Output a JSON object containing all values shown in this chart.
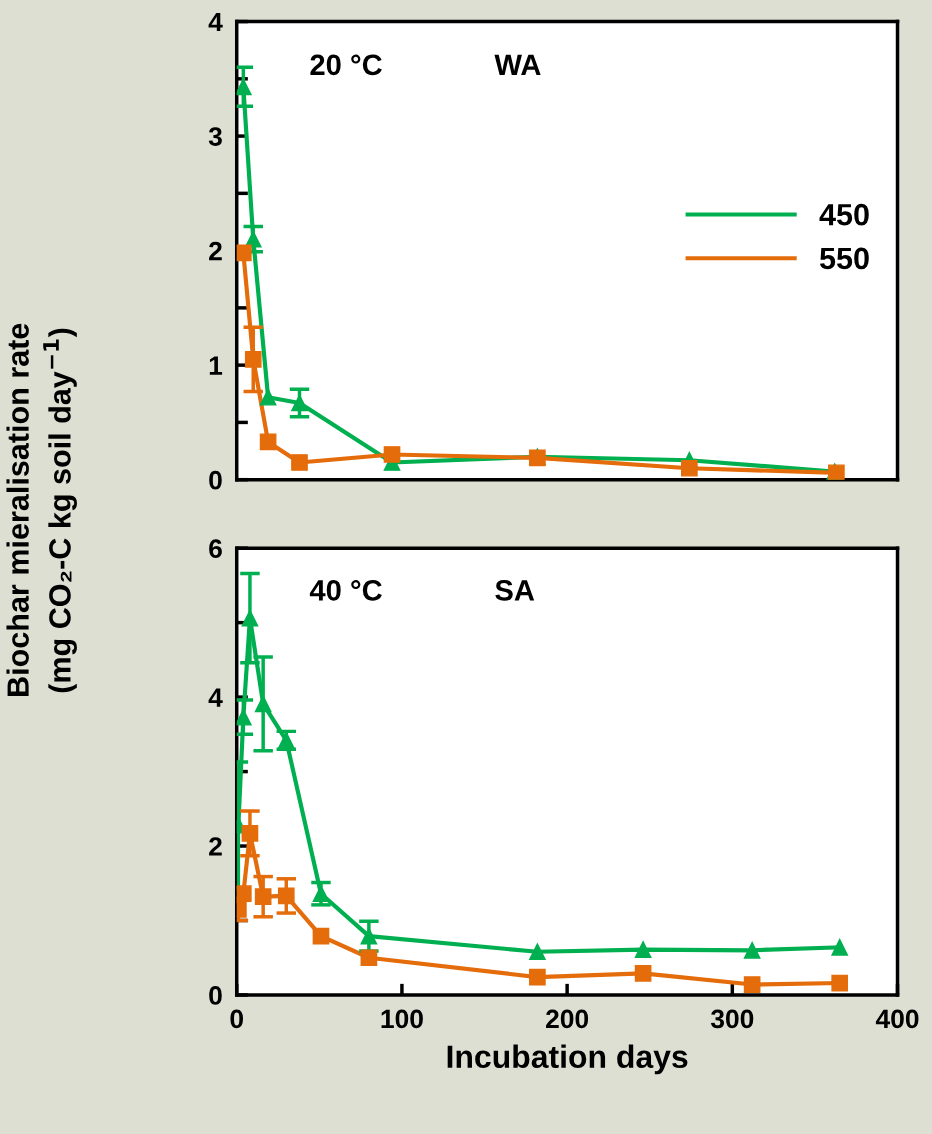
{
  "chart_data": [
    {
      "type": "line",
      "annotations": [
        "20 °C",
        "WA"
      ],
      "ylabel": "Biochar mieralisation rate\n(mg CO₂-C kg soil day$^{−1}$)",
      "xlim": [
        0,
        400
      ],
      "ylim": [
        0,
        4
      ],
      "yticks": [
        0,
        {
          "value": 0.5,
          "label": null
        },
        1,
        {
          "value": 1.5,
          "label": null
        },
        2,
        {
          "value": 2.5,
          "label": null
        },
        3,
        {
          "value": 3.5,
          "label": null
        },
        4
      ],
      "tick_labels": "y",
      "legend": "center right",
      "grid": false,
      "series": [
        {
          "name": "450",
          "color": "#00b050",
          "marker": "triangle",
          "x": [
            4,
            10,
            19,
            38,
            94,
            182,
            274,
            362
          ],
          "values": [
            3.43,
            2.1,
            0.72,
            0.67,
            0.15,
            0.2,
            0.17,
            0.07
          ],
          "errors": [
            0.17,
            0.11,
            null,
            0.12,
            null,
            null,
            null,
            null
          ]
        },
        {
          "name": "550",
          "color": "#e46c0a",
          "marker": "square",
          "x": [
            4,
            10,
            19,
            38,
            94,
            182,
            274,
            363
          ],
          "values": [
            1.98,
            1.05,
            0.33,
            0.15,
            0.22,
            0.19,
            0.1,
            0.06
          ],
          "errors": [
            null,
            0.28,
            null,
            null,
            null,
            null,
            null,
            null
          ]
        }
      ]
    },
    {
      "type": "line",
      "annotations": [
        "40 °C",
        "SA"
      ],
      "xlabel": "Incubation days",
      "xlim": [
        0,
        400
      ],
      "xticks": [
        0,
        100,
        200,
        300,
        400
      ],
      "ylim": [
        0,
        6
      ],
      "yticks": [
        0,
        {
          "value": 1,
          "label": null
        },
        2,
        {
          "value": 3,
          "label": null
        },
        4,
        {
          "value": 5,
          "label": null
        },
        6
      ],
      "grid": false,
      "series": [
        {
          "color": "#00b050",
          "marker": "triangle",
          "x": [
            1,
            4,
            8,
            16,
            30,
            51,
            80,
            182,
            246,
            312,
            365
          ],
          "values": [
            2.28,
            3.73,
            5.06,
            3.91,
            3.42,
            1.36,
            0.79,
            0.58,
            0.61,
            0.6,
            0.64
          ],
          "errors": [
            0.85,
            0.23,
            0.6,
            0.63,
            0.12,
            0.15,
            0.2,
            null,
            null,
            null,
            null
          ]
        },
        {
          "color": "#e46c0a",
          "marker": "square",
          "x": [
            1,
            4,
            8,
            16,
            30,
            51,
            80,
            182,
            246,
            312,
            365
          ],
          "values": [
            1.15,
            1.36,
            2.17,
            1.32,
            1.33,
            0.79,
            0.5,
            0.24,
            0.29,
            0.14,
            0.16
          ],
          "errors": [
            0.15,
            null,
            0.3,
            0.27,
            0.23,
            null,
            null,
            null,
            null,
            null,
            null
          ]
        }
      ]
    }
  ]
}
